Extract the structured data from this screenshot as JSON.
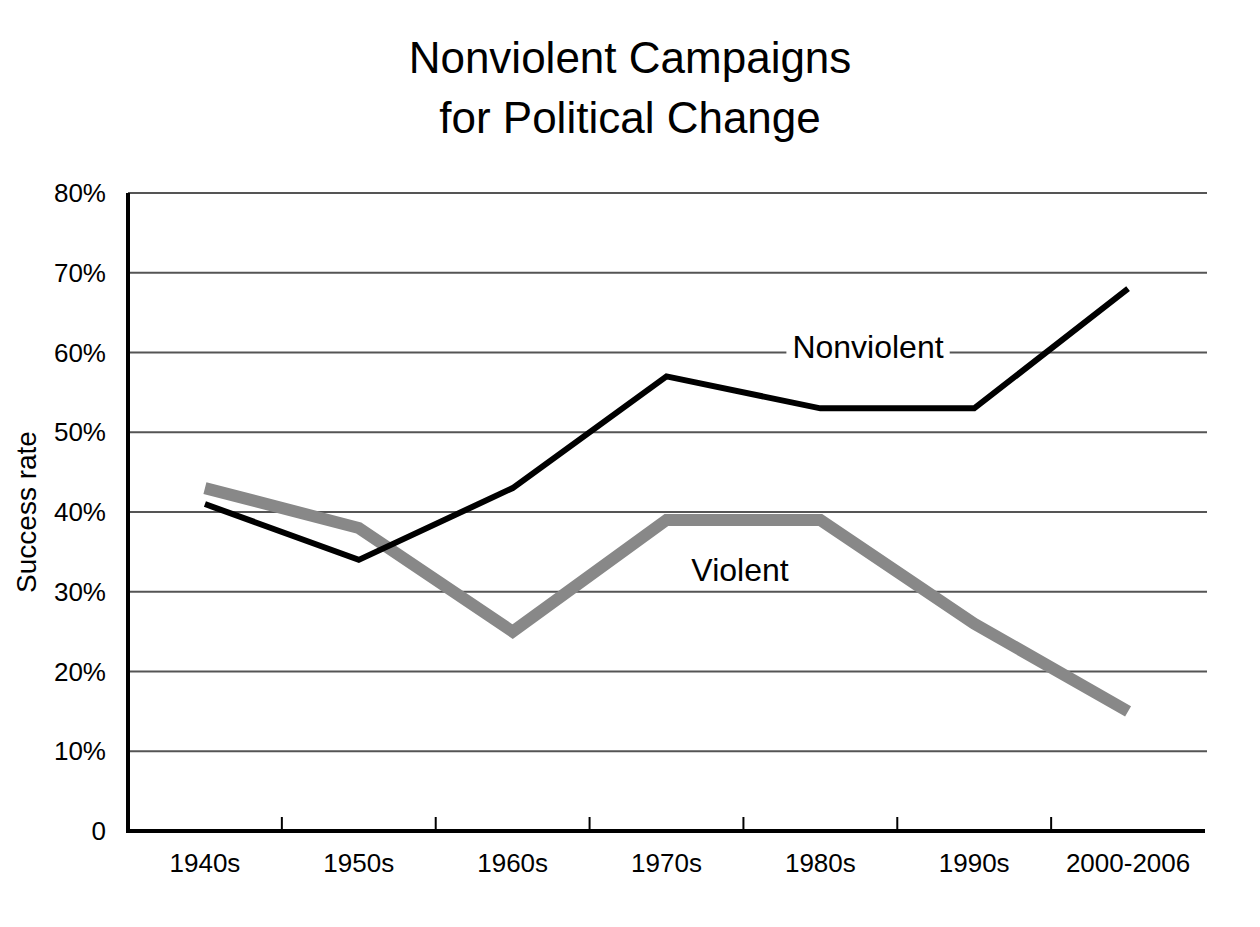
{
  "chart_data": {
    "type": "line",
    "title": "Nonviolent Campaigns for Political Change",
    "y_label": "Success rate",
    "categories": [
      "1940s",
      "1950s",
      "1960s",
      "1970s",
      "1980s",
      "1990s",
      "2000-2006"
    ],
    "series": [
      {
        "name": "Nonviolent",
        "color": "#000000",
        "values": [
          41,
          34,
          43,
          57,
          53,
          53,
          68
        ]
      },
      {
        "name": "Violent",
        "color": "#888888",
        "values": [
          43,
          38,
          25,
          39,
          39,
          26,
          15
        ]
      }
    ],
    "ylim": [
      0,
      80
    ],
    "yticks": [
      0,
      {
        "value": 10,
        "label": "10%"
      },
      {
        "value": 20,
        "label": "20%"
      },
      {
        "value": 30,
        "label": "30%"
      },
      {
        "value": 40,
        "label": "40%"
      },
      {
        "value": 50,
        "label": "50%"
      },
      {
        "value": 60,
        "label": "60%"
      },
      {
        "value": 70,
        "label": "70%"
      },
      {
        "value": 80,
        "label": "80%"
      }
    ],
    "grid": true
  }
}
